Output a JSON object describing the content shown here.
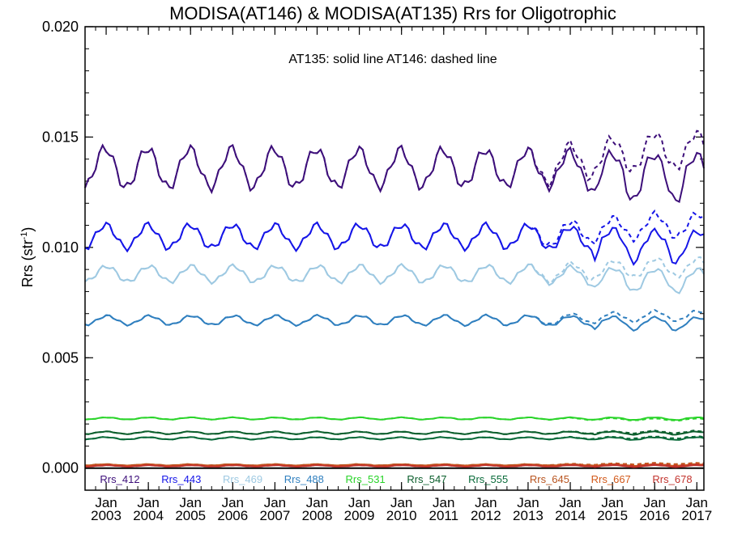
{
  "chart_data": {
    "type": "line",
    "title": "MODISA(AT146) & MODISA(AT135)  Rrs for Oligotrophic",
    "annotation": "AT135: solid line   AT146: dashed line",
    "ylabel": "Rrs (str",
    "ylabel_superscript": "-1",
    "ylabel_suffix": ")",
    "ylim": [
      -0.001,
      0.02
    ],
    "yticks": [
      "0.000",
      "0.005",
      "0.010",
      "0.015",
      "0.020"
    ],
    "xlim": [
      "2002-07",
      "2017-03"
    ],
    "xticks_month": "Jan",
    "xticks_years": [
      "2003",
      "2004",
      "2005",
      "2006",
      "2007",
      "2008",
      "2009",
      "2010",
      "2011",
      "2012",
      "2013",
      "2014",
      "2015",
      "2016",
      "2017"
    ],
    "x_frequency": "monthly",
    "line_styles": {
      "solid": "AT135",
      "dashed": "AT146"
    },
    "series": [
      {
        "name": "Rrs_412",
        "color": "#3d0f7a",
        "mean": 0.0136,
        "amplitude": 0.0009,
        "solid_trend_after_2013": -0.0002,
        "dashed_offset_after_2013": 0.0008
      },
      {
        "name": "Rrs_443",
        "color": "#1515e8",
        "mean": 0.0105,
        "amplitude": 0.0006,
        "solid_trend_after_2013": -0.0003,
        "dashed_offset_after_2013": 0.0005
      },
      {
        "name": "Rrs_469",
        "color": "#9ec9e2",
        "mean": 0.0088,
        "amplitude": 0.0004,
        "solid_trend_after_2013": -0.0002,
        "dashed_offset_after_2013": 0.0003
      },
      {
        "name": "Rrs_488",
        "color": "#2f7fbf",
        "mean": 0.0067,
        "amplitude": 0.0002,
        "solid_trend_after_2013": -0.0001,
        "dashed_offset_after_2013": 0.0002
      },
      {
        "name": "Rrs_531",
        "color": "#2ad42a",
        "mean": 0.00225,
        "amplitude": 4e-05,
        "solid_trend_after_2013": 0,
        "dashed_offset_after_2013": -5e-05
      },
      {
        "name": "Rrs_547",
        "color": "#0b5e2c",
        "mean": 0.0016,
        "amplitude": 5e-05,
        "solid_trend_after_2013": 0,
        "dashed_offset_after_2013": 4e-05
      },
      {
        "name": "Rrs_555",
        "color": "#0a6b3a",
        "mean": 0.00135,
        "amplitude": 5e-05,
        "solid_trend_after_2013": 0,
        "dashed_offset_after_2013": 4e-05
      },
      {
        "name": "Rrs_645",
        "color": "#b8541f",
        "mean": 0.00015,
        "amplitude": 3e-05,
        "solid_trend_after_2013": 0,
        "dashed_offset_after_2013": 6e-05
      },
      {
        "name": "Rrs_667",
        "color": "#d2591a",
        "mean": 0.00012,
        "amplitude": 3e-05,
        "solid_trend_after_2013": 0,
        "dashed_offset_after_2013": 5e-05
      },
      {
        "name": "Rrs_678",
        "color": "#c2332d",
        "mean": 0.0001,
        "amplitude": 3e-05,
        "solid_trend_after_2013": 0,
        "dashed_offset_after_2013": 4e-05
      }
    ],
    "zero_line": true,
    "grid": false,
    "legend_placement": "bottom-inside"
  }
}
